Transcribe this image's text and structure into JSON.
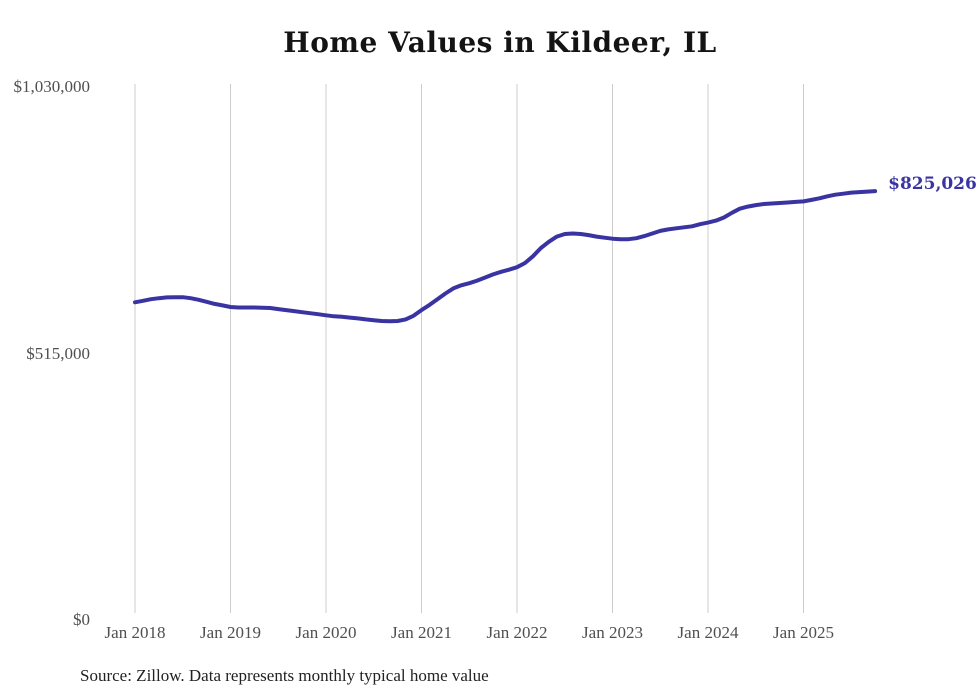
{
  "chart_data": {
    "type": "line",
    "title": "Home Values in Kildeer, IL",
    "source_note": "Source: Zillow. Data represents monthly typical home value",
    "end_label": "$825,026",
    "frequency": "monthly",
    "x_start": "Jan 2018",
    "x_end": "Oct 2025",
    "ylim": [
      0,
      1030000
    ],
    "grid": "vertical-year-gridlines-only",
    "legend": "none",
    "x_ticks": [
      "Jan 2018",
      "Jan 2019",
      "Jan 2020",
      "Jan 2021",
      "Jan 2022",
      "Jan 2023",
      "Jan 2024",
      "Jan 2025"
    ],
    "y_ticks": [
      {
        "label": "$1,030,000",
        "value": 1030000
      },
      {
        "label": "$515,000",
        "value": 515000
      },
      {
        "label": "$0",
        "value": 0
      }
    ],
    "series": [
      {
        "name": "Typical home value (USD)",
        "values": [
          610000,
          613000,
          616000,
          618000,
          619500,
          620000,
          620000,
          618000,
          615000,
          611000,
          607000,
          604000,
          601000,
          600000,
          600000,
          600000,
          599500,
          599000,
          597000,
          595000,
          593000,
          591000,
          589000,
          587000,
          585000,
          583000,
          582000,
          580500,
          579000,
          577000,
          575500,
          574000,
          573500,
          574000,
          577000,
          584000,
          595000,
          605000,
          616000,
          627000,
          637000,
          643000,
          647000,
          652000,
          658000,
          664000,
          669000,
          673000,
          678000,
          686000,
          699000,
          715000,
          727000,
          737000,
          742000,
          743000,
          742000,
          740000,
          737000,
          735000,
          733000,
          732000,
          732000,
          734000,
          738000,
          743000,
          748000,
          751000,
          753000,
          755000,
          757000,
          761000,
          764000,
          768000,
          774000,
          783000,
          791000,
          795000,
          798000,
          800000,
          801000,
          802000,
          803000,
          804000,
          805000,
          808000,
          811000,
          815000,
          818000,
          820000,
          822000,
          823000,
          824000,
          825026
        ]
      }
    ],
    "colors": {
      "line": "#3a34a3",
      "grid": "#cccccc",
      "tick_text": "#4f4f4f",
      "title_text": "#141414",
      "source_text": "#222222",
      "end_label_text": "#3a34a3",
      "background": "#ffffff"
    }
  }
}
